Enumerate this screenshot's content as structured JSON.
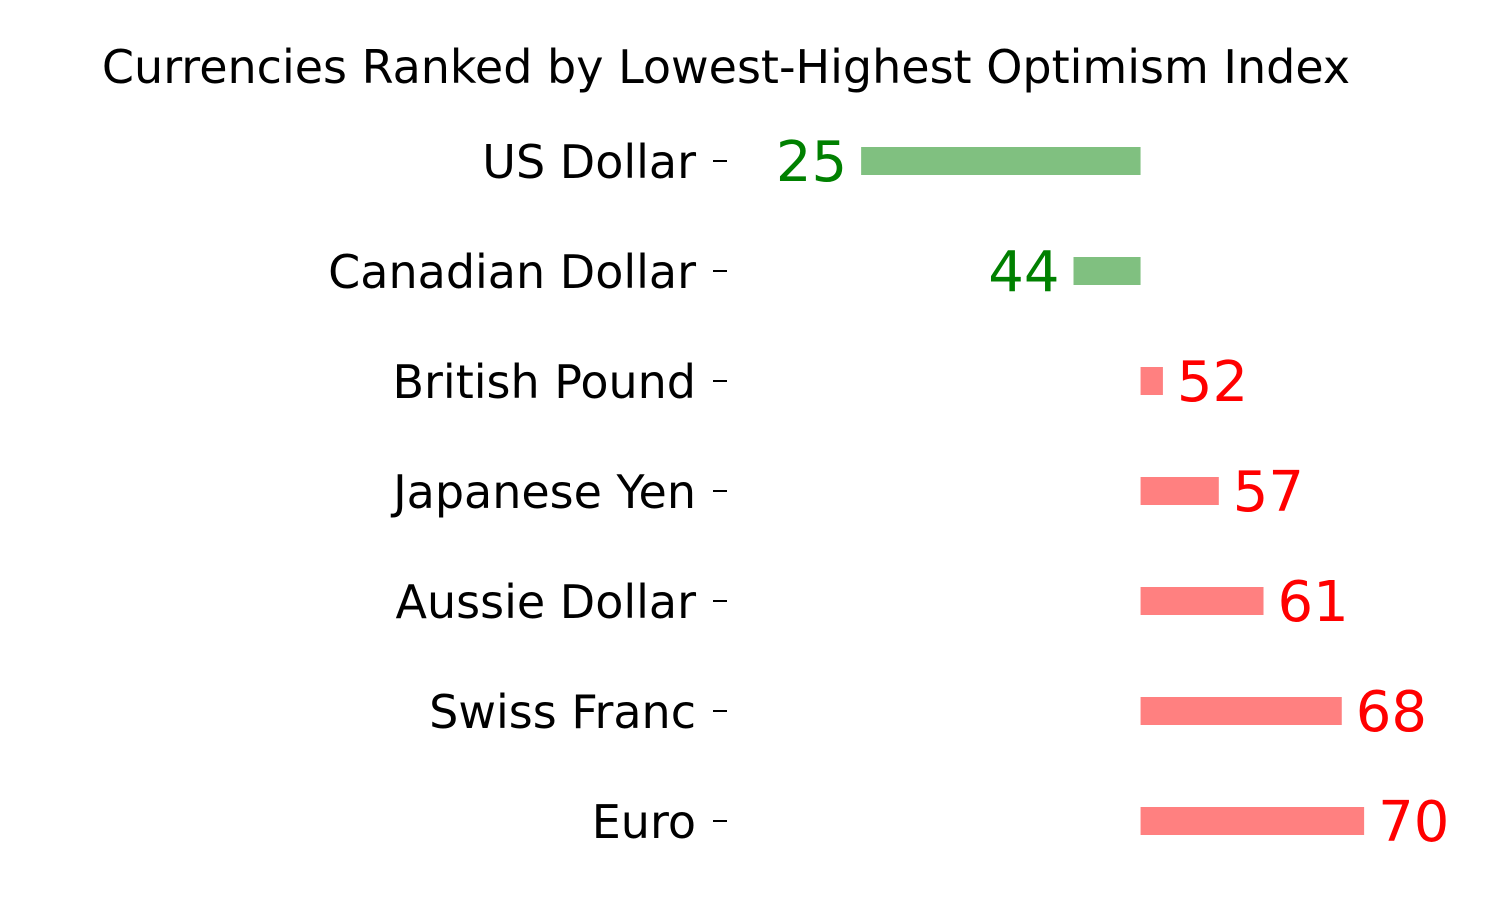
{
  "chart_data": {
    "type": "bar",
    "orientation": "horizontal",
    "title": "Currencies Ranked by Lowest-Highest Optimism Index",
    "xlabel": "",
    "ylabel": "",
    "baseline": 50,
    "xlim": [
      13,
      75
    ],
    "categories": [
      "US Dollar",
      "Canadian Dollar",
      "British Pound",
      "Japanese Yen",
      "Aussie Dollar",
      "Swiss Franc",
      "Euro"
    ],
    "values": [
      25,
      44,
      52,
      57,
      61,
      68,
      70
    ],
    "value_labels": [
      "25",
      "44",
      "52",
      "57",
      "61",
      "68",
      "70"
    ],
    "grid": false,
    "legend": "none",
    "colors": {
      "below_bar": "#80c080",
      "below_text": "#008000",
      "above_bar": "#ff8080",
      "above_text": "#ff0000"
    }
  }
}
